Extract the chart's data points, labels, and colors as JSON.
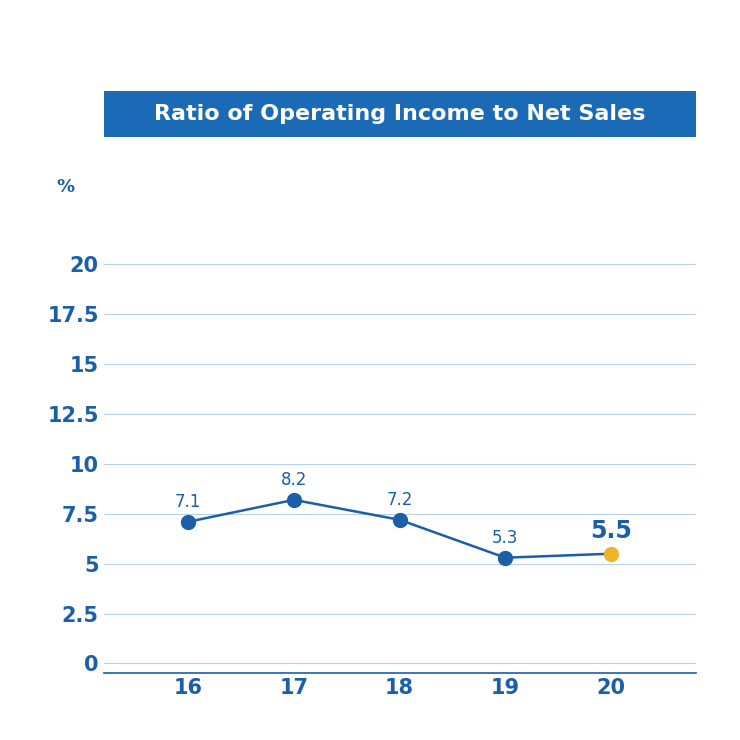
{
  "title": "Ratio of Operating Income to Net Sales",
  "title_bg_color": "#1a6ab5",
  "title_text_color": "#ffffff",
  "x_values": [
    16,
    17,
    18,
    19,
    20
  ],
  "y_values": [
    7.1,
    8.2,
    7.2,
    5.3,
    5.5
  ],
  "data_labels": [
    "7.1",
    "8.2",
    "7.2",
    "5.3",
    "5.5"
  ],
  "line_color": "#1a5fa8",
  "marker_color_default": "#1a5fa8",
  "marker_color_last": "#f0b429",
  "label_color_default": "#1a5fa8",
  "label_color_last": "#1a5fa8",
  "ylabel_text": "%",
  "ylabel_color": "#1a5fa8",
  "yticks": [
    0,
    2.5,
    5,
    7.5,
    10,
    12.5,
    15,
    17.5,
    20
  ],
  "ytick_labels": [
    "0",
    "2.5",
    "5",
    "7.5",
    "10",
    "12.5",
    "15",
    "17.5",
    "20"
  ],
  "xtick_labels": [
    "16",
    "17",
    "18",
    "19",
    "20"
  ],
  "ylim": [
    -0.5,
    22.5
  ],
  "grid_color": "#b8d0e8",
  "tick_color": "#1a5fa8",
  "background_color": "#ffffff",
  "marker_size": 10,
  "line_width": 1.8,
  "label_fontsize_default": 12,
  "label_fontsize_last": 17,
  "tick_fontsize": 15,
  "pct_fontsize": 13
}
